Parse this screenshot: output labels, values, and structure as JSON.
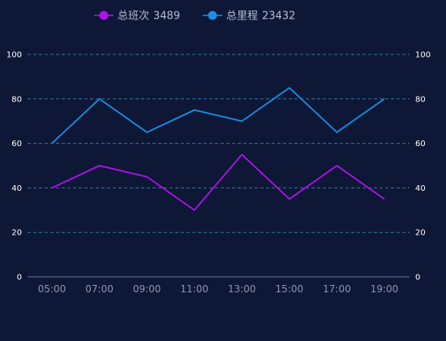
{
  "chart_data": {
    "type": "line",
    "categories": [
      "05:00",
      "07:00",
      "09:00",
      "11:00",
      "13:00",
      "15:00",
      "17:00",
      "19:00"
    ],
    "ylim": [
      0,
      100
    ],
    "yticks": [
      0,
      20,
      40,
      60,
      80,
      100
    ],
    "grid": true,
    "legend_position": "top-center",
    "series": [
      {
        "name": "总班次",
        "legend_value": "3489",
        "color": "#b012f0",
        "values": [
          40,
          50,
          45,
          30,
          55,
          35,
          50,
          35
        ]
      },
      {
        "name": "总里程",
        "legend_value": "23432",
        "color": "#1a8fe8",
        "values": [
          60,
          80,
          65,
          75,
          70,
          85,
          65,
          80
        ]
      }
    ],
    "colors": {
      "background": "#0e1736",
      "grid": "#2f79a8",
      "axis_text": "#ffffff",
      "category_text": "#8d94ad",
      "legend_text": "#b5bcd2"
    }
  }
}
